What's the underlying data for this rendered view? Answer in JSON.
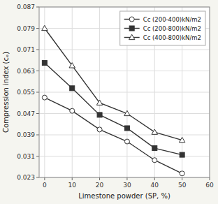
{
  "chart_data": {
    "type": "line",
    "xlabel": "Limestone powder (SP, %)",
    "ylabel": "Compression index (cₑ)",
    "x": [
      0,
      10,
      20,
      30,
      40,
      50
    ],
    "series": [
      {
        "name": "Cc (200-400)kN/m2",
        "color": "#333333",
        "marker": "open-circle",
        "line_style": "solid",
        "values": [
          0.053,
          0.048,
          0.041,
          0.0365,
          0.0295,
          0.0245
        ]
      },
      {
        "name": "Cc (200-800)kN/m2",
        "color": "#333333",
        "marker": "filled-square",
        "line_style": "solid",
        "values": [
          0.066,
          0.0565,
          0.0465,
          0.0415,
          0.034,
          0.0315
        ]
      },
      {
        "name": "Cc (400-800)kN/m2",
        "color": "#333333",
        "marker": "open-triangle",
        "line_style": "solid",
        "values": [
          0.079,
          0.065,
          0.051,
          0.047,
          0.04,
          0.037
        ]
      }
    ],
    "xlim": [
      -2,
      60
    ],
    "ylim": [
      0.023,
      0.087
    ],
    "xticks": [
      0,
      10,
      20,
      30,
      40,
      50,
      60
    ],
    "yticks": [
      0.023,
      0.031,
      0.039,
      0.047,
      0.055,
      0.063,
      0.071,
      0.079,
      0.087
    ],
    "grid": true,
    "legend": "upper right"
  }
}
